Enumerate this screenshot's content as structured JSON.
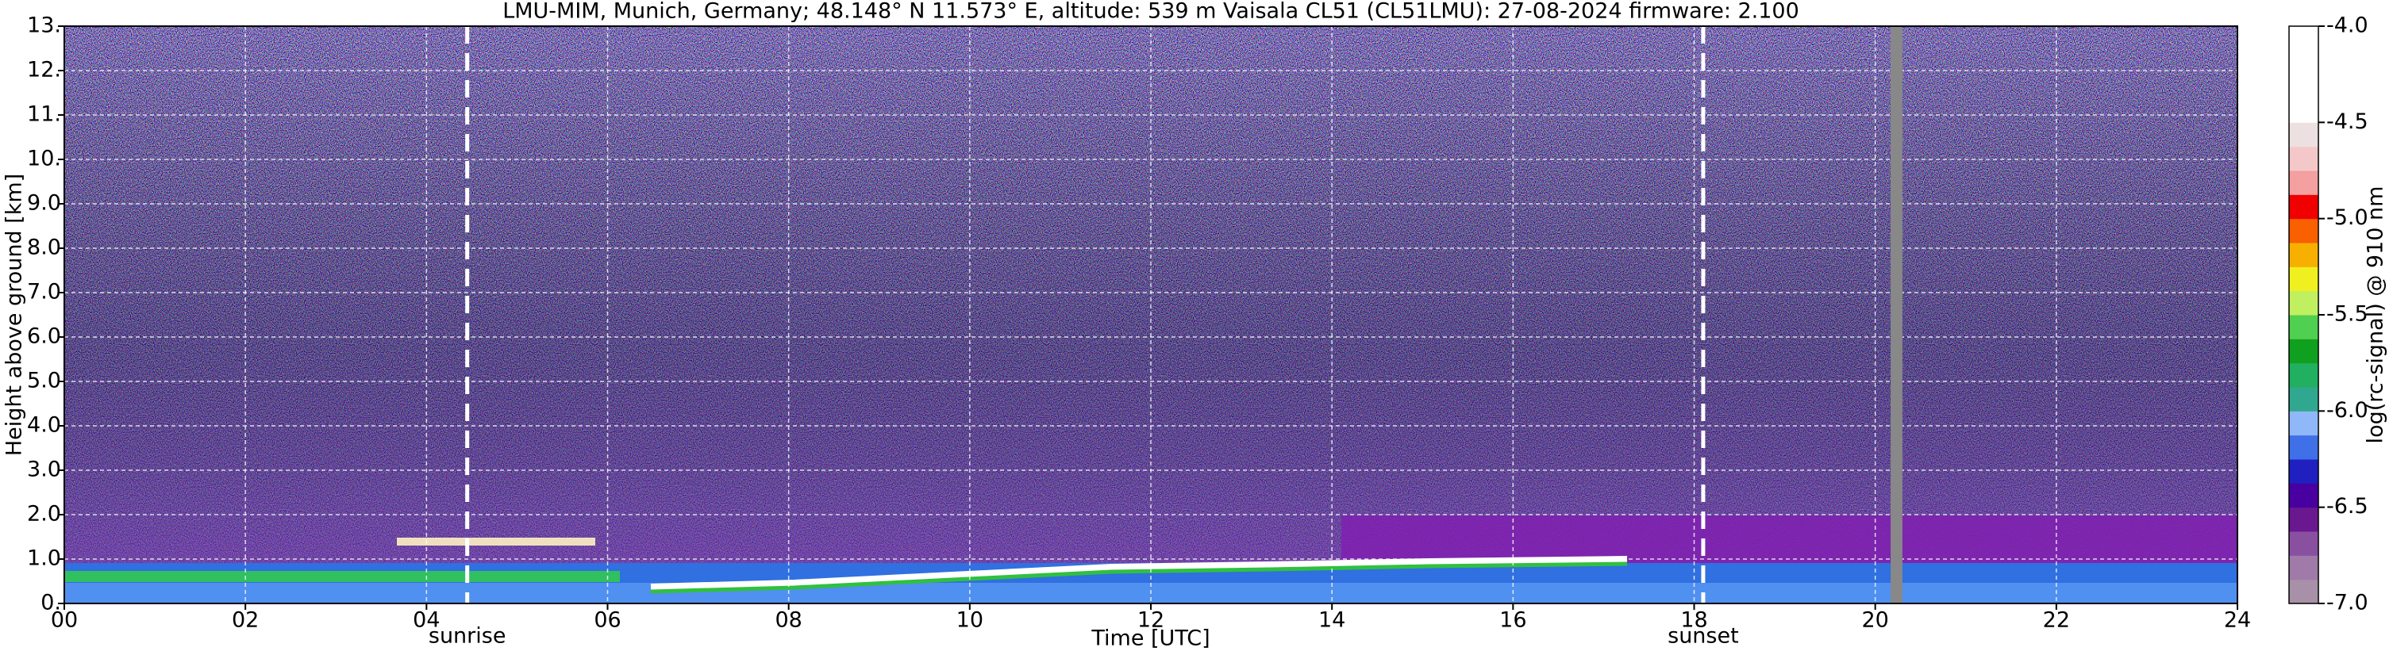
{
  "chart_data": {
    "type": "ceilometer",
    "title": "LMU-MIM, Munich, Germany; 48.148° N 11.573° E, altitude: 539 m    Vaisala CL51 (CL51LMU): 27-08-2024    firmware: 2.100",
    "xlabel": "Time [UTC]",
    "ylabel": "Height above ground [km]",
    "xlim": [
      0,
      24
    ],
    "xticks": [
      {
        "value": 0,
        "label": "00"
      },
      {
        "value": 2,
        "label": "02"
      },
      {
        "value": 4,
        "label": "04"
      },
      {
        "value": 6,
        "label": "06"
      },
      {
        "value": 8,
        "label": "08"
      },
      10,
      12,
      14,
      16,
      18,
      20,
      22,
      24
    ],
    "ylim": [
      0,
      13
    ],
    "yticks": [
      {
        "value": 0,
        "label": "0."
      },
      {
        "value": 1,
        "label": "1.0"
      },
      {
        "value": 2,
        "label": "2.0"
      },
      {
        "value": 3,
        "label": "3.0"
      },
      {
        "value": 4,
        "label": "4.0"
      },
      {
        "value": 5,
        "label": "5.0"
      },
      {
        "value": 6,
        "label": "6.0"
      },
      {
        "value": 7,
        "label": "7.0"
      },
      {
        "value": 8,
        "label": "8.0"
      },
      {
        "value": 9,
        "label": "9.0"
      },
      {
        "value": 10,
        "label": "10."
      },
      {
        "value": 11,
        "label": "11."
      },
      {
        "value": 12,
        "label": "12."
      },
      {
        "value": 13,
        "label": "13."
      }
    ],
    "grid": true,
    "annotations": [
      {
        "x": 4.45,
        "label": "sunrise"
      },
      {
        "x": 18.1,
        "label": "sunset"
      }
    ],
    "gap": [
      20.17,
      20.3
    ],
    "colorbar": {
      "label": "log(rc-signal) @ 910 nm",
      "lim": [
        -7,
        -4
      ],
      "ticks": [
        {
          "value": -7,
          "label": "-7.0"
        },
        {
          "value": -6.5,
          "label": "-6.5"
        },
        {
          "value": -6,
          "label": "-6.0"
        },
        {
          "value": -5.5,
          "label": "-5.5"
        },
        {
          "value": -5,
          "label": "-5.0"
        },
        {
          "value": -4.5,
          "label": "-4.5"
        },
        {
          "value": -4,
          "label": "-4.0"
        }
      ],
      "colors": [
        "#a890a8",
        "#a07aa8",
        "#8a50a0",
        "#6a1890",
        "#4800a0",
        "#2020c0",
        "#4070e8",
        "#90b8f8",
        "#30a890",
        "#20b060",
        "#10a020",
        "#50d050",
        "#c0f060",
        "#f0f020",
        "#f8b000",
        "#f86000",
        "#f00000",
        "#f4a0a0",
        "#f4c8c8",
        "#ece0e0",
        "#ffffff",
        "#ffffff",
        "#ffffff",
        "#ffffff"
      ]
    }
  }
}
